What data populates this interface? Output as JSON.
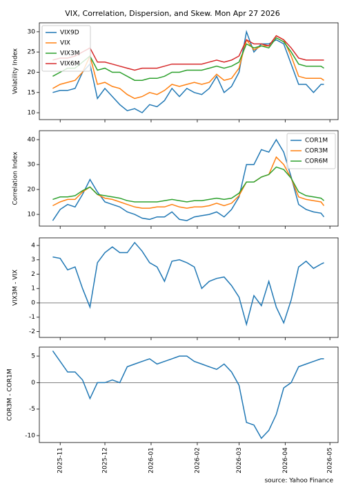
{
  "chart_data": [
    {
      "type": "line",
      "title": "VIX, Correlation, Dispersion, and Skew. Mon Apr 27 2026",
      "ylabel": "Volatility Index",
      "x": [
        0,
        5,
        10,
        15,
        20,
        25,
        30,
        35,
        40,
        45,
        50,
        55,
        60,
        65,
        70,
        75,
        80,
        85,
        90,
        95,
        100,
        105,
        110,
        115,
        120,
        125,
        130,
        135,
        140,
        145,
        150,
        155,
        160,
        165,
        170,
        175,
        180,
        182
      ],
      "xlim": [
        -9,
        191.5
      ],
      "ylim": [
        8.3,
        32.2
      ],
      "yticks": [
        10,
        15,
        20,
        25,
        30
      ],
      "legend": "upper left",
      "series": [
        {
          "name": "VIX9D",
          "color": "#1f77b4",
          "values": [
            15,
            15.5,
            15.5,
            16,
            20,
            22,
            13.5,
            16,
            14,
            12,
            10.5,
            11,
            10,
            12,
            11.5,
            13,
            16,
            14,
            16,
            15,
            14.5,
            16,
            19,
            15,
            16.5,
            20,
            30,
            25,
            27,
            27,
            28,
            27,
            22,
            17,
            17,
            15,
            17,
            17
          ]
        },
        {
          "name": "VIX",
          "color": "#ff7f0e",
          "values": [
            16,
            17,
            17.5,
            18,
            20,
            24,
            17,
            17.5,
            16.5,
            16,
            14.5,
            13.5,
            14,
            15,
            14.5,
            15.5,
            17,
            16.5,
            17,
            17.5,
            17,
            17.5,
            19.5,
            18,
            18.5,
            21,
            28,
            25.5,
            26.5,
            26.5,
            29,
            28,
            24,
            19,
            18.5,
            18.5,
            18.5,
            18
          ]
        },
        {
          "name": "VIX3M",
          "color": "#2ca02c",
          "values": [
            19,
            20,
            21,
            21,
            22.5,
            24,
            20.5,
            21,
            20,
            20,
            19,
            18,
            18,
            18.5,
            18.5,
            19,
            20,
            20,
            20.5,
            20.5,
            20.5,
            21,
            21.5,
            21,
            21.5,
            22.5,
            27,
            26,
            26.5,
            26,
            28.5,
            27.5,
            25,
            22,
            21.5,
            21.5,
            21.5,
            21
          ]
        },
        {
          "name": "VIX6M",
          "color": "#d62728",
          "values": [
            23,
            23.5,
            23.5,
            24,
            25,
            26,
            22.5,
            22.5,
            22,
            21.5,
            21,
            20.5,
            21,
            21,
            21,
            21.5,
            22,
            22,
            22,
            22,
            22,
            22.5,
            23,
            22.5,
            23,
            24,
            28,
            27,
            27,
            26.5,
            29,
            28,
            26,
            23.5,
            23,
            23,
            23,
            23
          ]
        }
      ]
    },
    {
      "type": "line",
      "ylabel": "Correlation Index",
      "x": [
        0,
        5,
        10,
        15,
        20,
        25,
        30,
        35,
        40,
        45,
        50,
        55,
        60,
        65,
        70,
        75,
        80,
        85,
        90,
        95,
        100,
        105,
        110,
        115,
        120,
        125,
        130,
        135,
        140,
        145,
        150,
        155,
        160,
        165,
        170,
        175,
        180,
        182
      ],
      "xlim": [
        -9,
        191.5
      ],
      "ylim": [
        5.3,
        43.6
      ],
      "yticks": [
        10,
        20,
        30,
        40
      ],
      "legend": "upper right",
      "series": [
        {
          "name": "COR1M",
          "color": "#1f77b4",
          "values": [
            7.5,
            12,
            14,
            13,
            18,
            24,
            19,
            15,
            14,
            13,
            11,
            10,
            8.5,
            8,
            9,
            9,
            11,
            8,
            7.5,
            9,
            9.5,
            10,
            11,
            9,
            12,
            17,
            30,
            30,
            36,
            35,
            40,
            35,
            25,
            14,
            12,
            11,
            10.5,
            9
          ]
        },
        {
          "name": "COR3M",
          "color": "#ff7f0e",
          "values": [
            13.5,
            15,
            16,
            16,
            19,
            21,
            18,
            16.5,
            16,
            15,
            14,
            13,
            12.5,
            12.5,
            13,
            13,
            14,
            13,
            12.5,
            13,
            13,
            13.5,
            14.5,
            13.5,
            14.5,
            17.5,
            23,
            23,
            25,
            26,
            33,
            30,
            24.5,
            17,
            16,
            15.5,
            15,
            13.5
          ]
        },
        {
          "name": "COR6M",
          "color": "#2ca02c",
          "values": [
            16,
            17,
            17,
            17.5,
            19.5,
            21,
            18,
            17.5,
            17,
            16.5,
            15.5,
            15,
            15,
            15,
            15,
            15.5,
            16,
            15.5,
            15,
            15.5,
            15.5,
            16,
            16.5,
            16,
            16.5,
            18.5,
            23,
            23,
            25,
            26,
            29,
            28,
            24.5,
            19,
            17.5,
            17,
            16.5,
            15.5
          ]
        }
      ]
    },
    {
      "type": "line",
      "ylabel": "VIX3M - VIX",
      "color": "#1f77b4",
      "hline": 0,
      "x": [
        0,
        5,
        10,
        15,
        20,
        25,
        30,
        35,
        40,
        45,
        50,
        55,
        60,
        65,
        70,
        75,
        80,
        85,
        90,
        95,
        100,
        105,
        110,
        115,
        120,
        125,
        130,
        135,
        140,
        145,
        150,
        155,
        160,
        165,
        170,
        175,
        180,
        182
      ],
      "xlim": [
        -9,
        191.5
      ],
      "ylim": [
        -2.41,
        4.53
      ],
      "yticks": [
        -2,
        -1,
        0,
        1,
        2,
        3,
        4
      ],
      "values": [
        3.2,
        3.1,
        2.3,
        2.5,
        1.0,
        -0.3,
        2.8,
        3.5,
        3.9,
        3.5,
        3.5,
        4.2,
        3.6,
        2.8,
        2.5,
        1.5,
        2.9,
        3.0,
        2.8,
        2.5,
        1.0,
        1.5,
        1.7,
        1.8,
        1.2,
        0.4,
        -1.5,
        0.5,
        -0.2,
        1.5,
        -0.3,
        -1.4,
        0.2,
        2.5,
        2.9,
        2.4,
        2.7,
        2.8
      ]
    },
    {
      "type": "line",
      "ylabel": "COR3M - COR1M",
      "color": "#1f77b4",
      "hline": 0,
      "x": [
        0,
        5,
        10,
        15,
        20,
        25,
        30,
        35,
        40,
        45,
        50,
        55,
        60,
        65,
        70,
        75,
        80,
        85,
        90,
        95,
        100,
        105,
        110,
        115,
        120,
        125,
        130,
        135,
        140,
        145,
        150,
        155,
        160,
        165,
        170,
        175,
        180,
        182
      ],
      "xlim": [
        -9,
        191.5
      ],
      "ylim": [
        -11.3,
        6.7
      ],
      "yticks": [
        -10,
        -5,
        0,
        5
      ],
      "xticks": [
        {
          "value": 5,
          "label": "2025-11"
        },
        {
          "value": 35,
          "label": "2025-12"
        },
        {
          "value": 66,
          "label": "2026-01"
        },
        {
          "value": 97,
          "label": "2026-02"
        },
        {
          "value": 125,
          "label": "2026-03"
        },
        {
          "value": 156,
          "label": "2026-04"
        },
        {
          "value": 186,
          "label": "2026-05"
        }
      ],
      "values": [
        6,
        4,
        2,
        2,
        0.5,
        -3,
        0,
        0,
        0.5,
        0,
        3,
        3.5,
        4,
        4.5,
        3.5,
        4,
        4.5,
        5,
        5,
        4,
        3.5,
        3,
        2.5,
        3.5,
        2,
        -0.5,
        -7.5,
        -8,
        -10.5,
        -9,
        -6,
        -1,
        0,
        3,
        3.5,
        4,
        4.5,
        4.5
      ]
    }
  ],
  "source": "source: Yahoo Finance"
}
